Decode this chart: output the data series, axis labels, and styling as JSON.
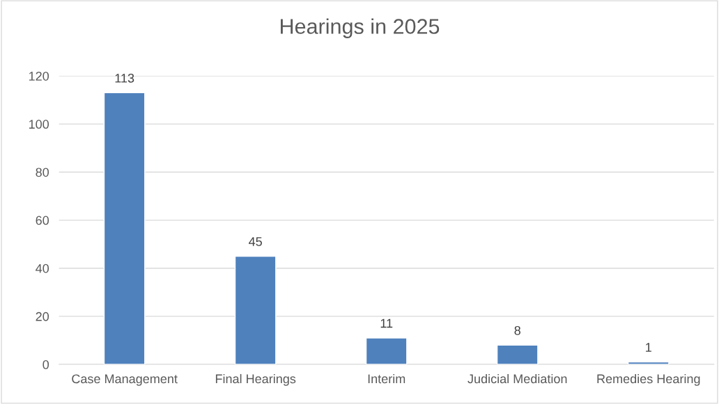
{
  "chart_data": {
    "type": "bar",
    "title": "Hearings in 2025",
    "categories": [
      "Case Management",
      "Final Hearings",
      "Interim",
      "Judicial Mediation",
      "Remedies Hearing"
    ],
    "values": [
      113,
      45,
      11,
      8,
      1
    ],
    "color": "#4f81bd",
    "ylim": [
      0,
      120
    ],
    "yticks": [
      0,
      20,
      40,
      60,
      80,
      100,
      120
    ],
    "grid": "y",
    "data_labels": true,
    "legend": false
  }
}
